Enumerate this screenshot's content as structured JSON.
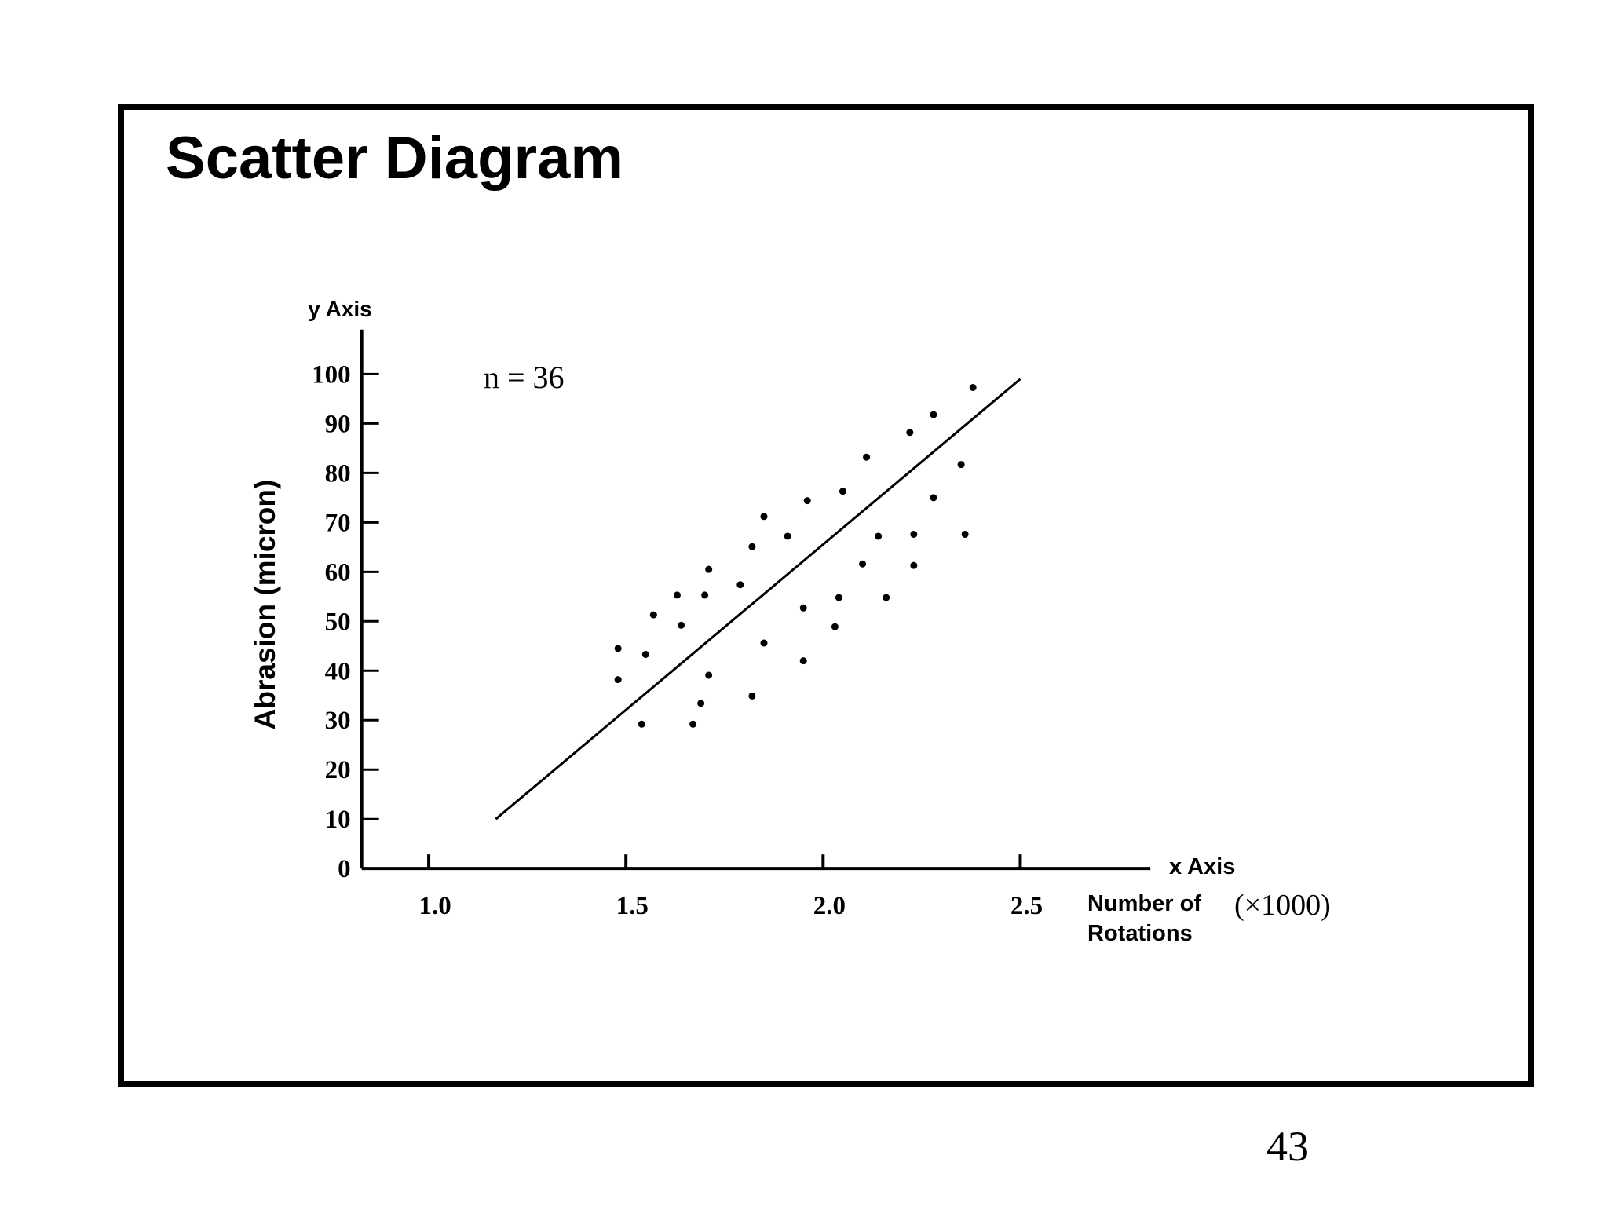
{
  "page_number": "43",
  "chart_data": {
    "type": "scatter",
    "title": "Scatter Diagram",
    "y_axis_name": "y Axis",
    "y_label": "Abrasion (micron)",
    "x_axis_name": "x Axis",
    "x_label": "Number of Rotations",
    "x_unit": "(×1000)",
    "annotation": "n = 36",
    "color": "#000000",
    "x": [
      1.48,
      1.48,
      1.55,
      1.57,
      1.54,
      1.63,
      1.64,
      1.67,
      1.69,
      1.7,
      1.71,
      1.71,
      1.79,
      1.82,
      1.82,
      1.85,
      1.85,
      1.91,
      1.95,
      1.95,
      1.96,
      2.03,
      2.04,
      2.05,
      2.1,
      2.11,
      2.14,
      2.16,
      2.22,
      2.23,
      2.23,
      2.28,
      2.28,
      2.35,
      2.36,
      2.38
    ],
    "y": [
      44.5,
      38.2,
      43.3,
      51.3,
      29.2,
      55.3,
      49.2,
      29.2,
      33.4,
      55.3,
      60.5,
      39.1,
      57.4,
      65.1,
      34.9,
      71.2,
      45.6,
      67.2,
      42.0,
      52.7,
      74.4,
      48.9,
      54.8,
      76.3,
      61.6,
      83.2,
      67.2,
      54.8,
      88.2,
      67.6,
      61.3,
      75.0,
      91.8,
      81.7,
      67.6,
      97.3
    ],
    "trendline": {
      "x": [
        1.17,
        2.5
      ],
      "y": [
        10,
        99
      ]
    },
    "xlim": [
      0.83,
      2.83
    ],
    "ylim": [
      0,
      109
    ],
    "xticks": [
      {
        "value": 1,
        "label": "1.0"
      },
      1.5,
      {
        "value": 2,
        "label": "2.0"
      },
      2.5
    ],
    "yticks": [
      0,
      10,
      20,
      30,
      40,
      50,
      60,
      70,
      80,
      90,
      100
    ]
  }
}
